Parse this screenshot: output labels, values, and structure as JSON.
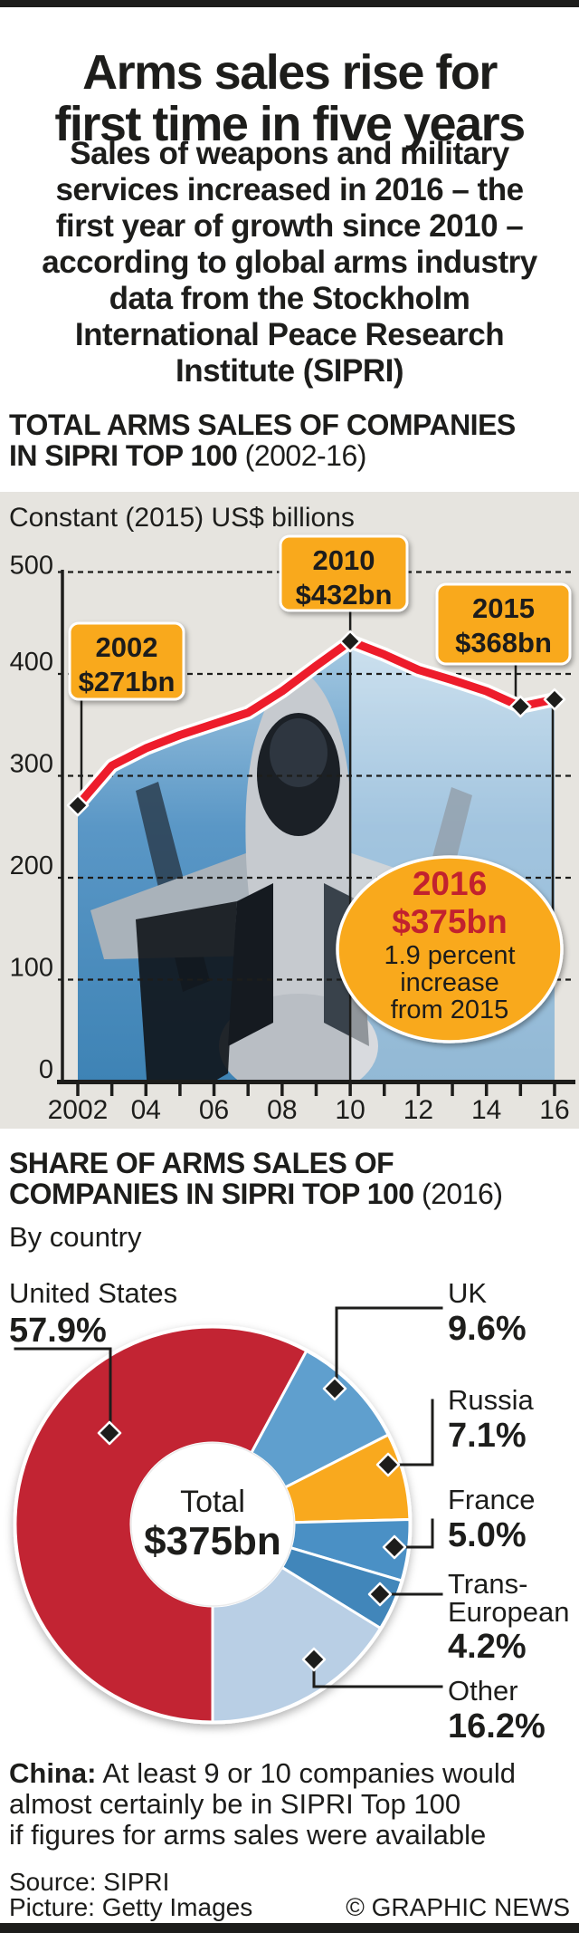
{
  "header": {
    "title": "Arms sales rise for\nfirst time in five years",
    "subtitle": "Sales of weapons and military\nservices increased in 2016 – the\nfirst year of growth since 2010 –\naccording to global arms industry\ndata from the Stockholm\nInternational Peace Research\nInstitute (SIPRI)"
  },
  "colors": {
    "ink": "#1d1d1b",
    "panel_gray": "#e6e4df",
    "line_red": "#ed1c2b",
    "dark_red_text": "#c2202f",
    "callout_orange": "#f9a91e",
    "marker_black": "#1d1d1b"
  },
  "chart_data": [
    {
      "id": "total-arms-sales",
      "type": "line",
      "title_l1": "TOTAL ARMS SALES OF COMPANIES",
      "title_l2_bold": "IN SIPRI TOP 100",
      "title_l2_note": "(2002-16)",
      "unit_label": "Constant (2015) US$ billions",
      "x": [
        2002,
        2003,
        2004,
        2005,
        2006,
        2007,
        2008,
        2009,
        2010,
        2011,
        2012,
        2013,
        2014,
        2015,
        2016
      ],
      "values": [
        271,
        310,
        327,
        340,
        351,
        362,
        383,
        408,
        432,
        419,
        404,
        394,
        383,
        368,
        375
      ],
      "ylim": [
        0,
        500
      ],
      "yticks": [
        0,
        100,
        200,
        300,
        400,
        500
      ],
      "xtick_labels": [
        "2002",
        "04",
        "06",
        "08",
        "10",
        "12",
        "14",
        "16"
      ],
      "grid": true,
      "annotations": [
        {
          "year": 2002,
          "value": 271,
          "line1": "2002",
          "line2": "$271bn"
        },
        {
          "year": 2010,
          "value": 432,
          "line1": "2010",
          "line2": "$432bn"
        },
        {
          "year": 2015,
          "value": 368,
          "line1": "2015",
          "line2": "$368bn"
        }
      ],
      "highlight": {
        "year": 2016,
        "value": 375,
        "line1": "2016",
        "line2": "$375bn",
        "line3": "1.9 percent",
        "line4": "increase",
        "line5": "from 2015"
      }
    },
    {
      "id": "share-by-country",
      "type": "pie",
      "title_l1": "SHARE OF ARMS SALES OF",
      "title_l2_bold": "COMPANIES IN SIPRI TOP 100",
      "title_l2_note": "(2016)",
      "subtitle": "By country",
      "center_label": "Total",
      "center_value": "$375bn",
      "start_angle_deg": 180,
      "direction": "clockwise",
      "slices": [
        {
          "label": "United States",
          "pct": 57.9,
          "display": "57.9%",
          "color": "#c22433"
        },
        {
          "label": "UK",
          "pct": 9.6,
          "display": "9.6%",
          "color": "#5f9fce"
        },
        {
          "label": "Russia",
          "pct": 7.1,
          "display": "7.1%",
          "color": "#f9a91e"
        },
        {
          "label": "France",
          "pct": 5.0,
          "display": "5.0%",
          "color": "#4a90c5"
        },
        {
          "label": "Trans-European",
          "pct": 4.2,
          "display": "4.2%",
          "color": "#4186ba",
          "label_lines": [
            "Trans-",
            "European"
          ]
        },
        {
          "label": "Other",
          "pct": 16.2,
          "display": "16.2%",
          "color": "#b9cfe5"
        }
      ]
    }
  ],
  "footnote": {
    "bold": "China:",
    "text": " At least 9 or 10 companies would\nalmost certainly be in SIPRI Top 100\nif figures for arms sales were available"
  },
  "footer": {
    "source": "Source: SIPRI",
    "picture": "Picture: Getty Images",
    "credit": "© GRAPHIC NEWS"
  }
}
